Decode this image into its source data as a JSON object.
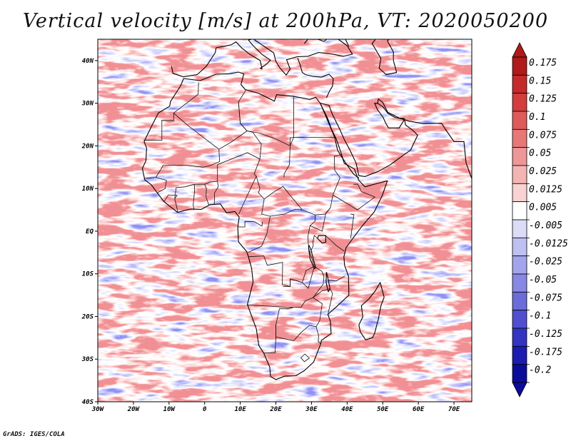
{
  "title": "Vertical velocity [m/s] at 200hPa, VT: 2020050200",
  "footer": "GrADS: IGES/COLA",
  "map": {
    "lon_range": [
      -30,
      75
    ],
    "lat_range": [
      -40,
      45
    ],
    "lat_ticks": [
      "40N",
      "30N",
      "20N",
      "10N",
      "EQ",
      "10S",
      "20S",
      "30S",
      "40S"
    ],
    "lon_ticks": [
      "30W",
      "20W",
      "10W",
      "0",
      "10E",
      "20E",
      "30E",
      "40E",
      "50E",
      "60E",
      "70E"
    ]
  },
  "colorbar": {
    "labels": [
      "0.175",
      "0.15",
      "0.125",
      "0.1",
      "0.075",
      "0.05",
      "0.025",
      "0.0125",
      "0.005",
      "-0.005",
      "-0.0125",
      "-0.025",
      "-0.05",
      "-0.075",
      "-0.1",
      "-0.125",
      "-0.175",
      "-0.2"
    ],
    "colors": [
      "#b01a1a",
      "#c42a2a",
      "#d43d3d",
      "#df5a5a",
      "#e87878",
      "#ef9696",
      "#f4b4b4",
      "#f9d2d2",
      "#ffffff",
      "#dcdcf8",
      "#bfc0f2",
      "#a3a4ec",
      "#8788e3",
      "#6b6cda",
      "#4f4fcf",
      "#3434c2",
      "#1c1cb0",
      "#0b0b9a"
    ]
  }
}
